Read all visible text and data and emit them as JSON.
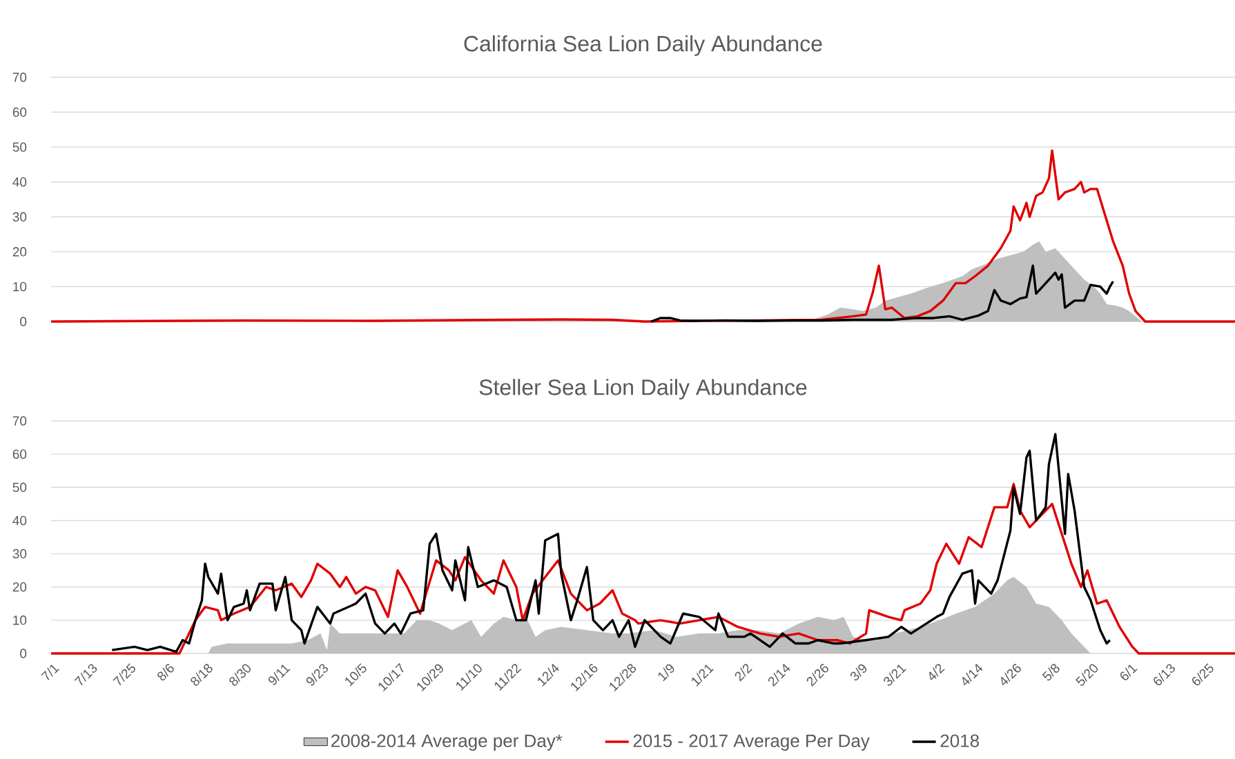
{
  "chart_data": [
    {
      "type": "line",
      "title": "California Sea Lion Daily Abundance",
      "xlim": [
        "2015-07-01",
        "2016-07-04"
      ],
      "ylim": [
        0,
        70
      ],
      "yticks": [
        0,
        10,
        20,
        30,
        40,
        50,
        60,
        70
      ],
      "grid": "y",
      "tick_labels": "y",
      "series": [
        {
          "type": "area",
          "color": "#bfbfbf",
          "x": [
            "2015-07-01",
            "2016-01-17",
            "2016-02-16",
            "2016-02-23",
            "2016-02-28",
            "2016-03-03",
            "2016-03-07",
            "2016-03-10",
            "2016-03-14",
            "2016-03-17",
            "2016-03-21",
            "2016-03-25",
            "2016-03-31",
            "2016-04-04",
            "2016-04-07",
            "2016-04-10",
            "2016-04-13",
            "2016-04-16",
            "2016-04-21",
            "2016-04-25",
            "2016-04-29",
            "2016-05-02",
            "2016-05-04",
            "2016-05-06",
            "2016-05-09",
            "2016-05-11",
            "2016-05-13",
            "2016-05-15",
            "2016-05-18",
            "2016-05-21",
            "2016-05-23",
            "2016-05-25",
            "2016-05-28",
            "2016-05-30",
            "2016-06-01",
            "2016-06-03",
            "2016-06-05",
            "2016-07-04"
          ],
          "values": [
            0,
            0.2,
            0.3,
            0.5,
            2,
            4,
            3.5,
            3,
            4,
            6,
            7,
            8,
            10,
            11,
            12,
            13,
            15,
            16,
            18,
            19,
            20,
            22,
            23,
            20,
            21,
            19,
            17,
            15,
            12,
            10,
            8,
            5,
            4.5,
            4,
            3,
            1.5,
            0,
            0
          ]
        },
        {
          "color": "#e00000",
          "x": [
            "2015-07-01",
            "2015-08-30",
            "2015-10-09",
            "2015-11-18",
            "2015-12-08",
            "2015-12-23",
            "2016-01-02",
            "2016-01-17",
            "2016-02-06",
            "2016-02-26",
            "2016-03-02",
            "2016-03-07",
            "2016-03-11",
            "2016-03-13",
            "2016-03-15",
            "2016-03-17",
            "2016-03-19",
            "2016-03-23",
            "2016-03-27",
            "2016-03-31",
            "2016-04-04",
            "2016-04-08",
            "2016-04-11",
            "2016-04-14",
            "2016-04-18",
            "2016-04-22",
            "2016-04-25",
            "2016-04-26",
            "2016-04-28",
            "2016-04-30",
            "2016-05-01",
            "2016-05-03",
            "2016-05-05",
            "2016-05-07",
            "2016-05-08",
            "2016-05-10",
            "2016-05-12",
            "2016-05-15",
            "2016-05-17",
            "2016-05-18",
            "2016-05-20",
            "2016-05-22",
            "2016-05-24",
            "2016-05-27",
            "2016-05-30",
            "2016-06-01",
            "2016-06-03",
            "2016-06-06",
            "2016-07-04"
          ],
          "values": [
            0,
            0.3,
            0.2,
            0.5,
            0.6,
            0.5,
            0,
            0.2,
            0.3,
            0.5,
            1,
            1.5,
            2,
            8,
            16,
            3.5,
            4,
            1,
            1.5,
            3,
            6,
            11,
            11,
            13,
            16,
            21,
            26,
            33,
            29,
            34,
            30,
            36,
            37,
            41,
            49,
            35,
            37,
            38,
            40,
            37,
            38,
            38,
            32,
            23,
            16,
            8,
            3,
            0,
            0
          ]
        },
        {
          "color": "#000000",
          "x": [
            "2016-01-04",
            "2016-01-07",
            "2016-01-10",
            "2016-01-13",
            "2016-01-17",
            "2016-01-27",
            "2016-02-06",
            "2016-02-16",
            "2016-02-26",
            "2016-03-07",
            "2016-03-19",
            "2016-03-26",
            "2016-04-01",
            "2016-04-06",
            "2016-04-10",
            "2016-04-15",
            "2016-04-18",
            "2016-04-20",
            "2016-04-22",
            "2016-04-25",
            "2016-04-28",
            "2016-04-30",
            "2016-05-02",
            "2016-05-03",
            "2016-05-07",
            "2016-05-09",
            "2016-05-10",
            "2016-05-11",
            "2016-05-12",
            "2016-05-15",
            "2016-05-18",
            "2016-05-20",
            "2016-05-23",
            "2016-05-25",
            "2016-05-26",
            "2016-05-27"
          ],
          "values": [
            0,
            1,
            1,
            0.3,
            0.2,
            0.3,
            0.2,
            0.3,
            0.3,
            0.5,
            0.5,
            1,
            1,
            1.5,
            0.5,
            1.7,
            3,
            9,
            6,
            5,
            6.6,
            7,
            16,
            8,
            12,
            14,
            12,
            13.5,
            4,
            6,
            6,
            10.5,
            10,
            8,
            10,
            11.5
          ]
        }
      ]
    },
    {
      "type": "line",
      "title": "Steller Sea Lion Daily Abundance",
      "xlim": [
        "2015-07-01",
        "2016-07-04"
      ],
      "ylim": [
        0,
        70
      ],
      "yticks": [
        0,
        10,
        20,
        30,
        40,
        50,
        60,
        70
      ],
      "grid": "y",
      "legend": "bottom",
      "xticks": [
        {
          "value": "2015-07-01",
          "label": "7/1"
        },
        {
          "value": "2015-07-13",
          "label": "7/13"
        },
        {
          "value": "2015-07-25",
          "label": "7/25"
        },
        {
          "value": "2015-08-06",
          "label": "8/6"
        },
        {
          "value": "2015-08-18",
          "label": "8/18"
        },
        {
          "value": "2015-08-30",
          "label": "8/30"
        },
        {
          "value": "2015-09-11",
          "label": "9/11"
        },
        {
          "value": "2015-09-23",
          "label": "9/23"
        },
        {
          "value": "2015-10-05",
          "label": "10/5"
        },
        {
          "value": "2015-10-17",
          "label": "10/17"
        },
        {
          "value": "2015-10-29",
          "label": "10/29"
        },
        {
          "value": "2015-11-10",
          "label": "11/10"
        },
        {
          "value": "2015-11-22",
          "label": "11/22"
        },
        {
          "value": "2015-12-04",
          "label": "12/4"
        },
        {
          "value": "2015-12-16",
          "label": "12/16"
        },
        {
          "value": "2015-12-28",
          "label": "12/28"
        },
        {
          "value": "2016-01-09",
          "label": "1/9"
        },
        {
          "value": "2016-01-21",
          "label": "1/21"
        },
        {
          "value": "2016-02-02",
          "label": "2/2"
        },
        {
          "value": "2016-02-14",
          "label": "2/14"
        },
        {
          "value": "2016-02-26",
          "label": "2/26"
        },
        {
          "value": "2016-03-09",
          "label": "3/9"
        },
        {
          "value": "2016-03-21",
          "label": "3/21"
        },
        {
          "value": "2016-04-02",
          "label": "4/2"
        },
        {
          "value": "2016-04-14",
          "label": "4/14"
        },
        {
          "value": "2016-04-26",
          "label": "4/26"
        },
        {
          "value": "2016-05-08",
          "label": "5/8"
        },
        {
          "value": "2016-05-20",
          "label": "5/20"
        },
        {
          "value": "2016-06-01",
          "label": "6/1"
        },
        {
          "value": "2016-06-13",
          "label": "6/13"
        },
        {
          "value": "2016-06-25",
          "label": "6/25"
        }
      ],
      "series": [
        {
          "type": "area",
          "name": "2008-2014 Average per Day*",
          "color": "#bfbfbf",
          "x": [
            "2015-07-01",
            "2015-08-19",
            "2015-08-20",
            "2015-08-25",
            "2015-09-04",
            "2015-09-14",
            "2015-09-19",
            "2015-09-23",
            "2015-09-25",
            "2015-09-26",
            "2015-09-29",
            "2015-10-09",
            "2015-10-19",
            "2015-10-23",
            "2015-10-27",
            "2015-10-30",
            "2015-11-03",
            "2015-11-09",
            "2015-11-12",
            "2015-11-16",
            "2015-11-19",
            "2015-11-23",
            "2015-11-26",
            "2015-11-29",
            "2015-12-02",
            "2015-12-07",
            "2015-12-15",
            "2015-12-23",
            "2015-12-28",
            "2016-01-05",
            "2016-01-12",
            "2016-01-19",
            "2016-01-25",
            "2016-01-31",
            "2016-02-06",
            "2016-02-13",
            "2016-02-19",
            "2016-02-25",
            "2016-03-01",
            "2016-03-04",
            "2016-03-07",
            "2016-03-11",
            "2016-03-14",
            "2016-03-20",
            "2016-03-28",
            "2016-04-03",
            "2016-04-08",
            "2016-04-14",
            "2016-04-20",
            "2016-04-24",
            "2016-04-26",
            "2016-04-30",
            "2016-05-03",
            "2016-05-07",
            "2016-05-11",
            "2016-05-14",
            "2016-05-18",
            "2016-05-20",
            "2016-07-04"
          ],
          "values": [
            0,
            0,
            2,
            3,
            3,
            3,
            4,
            6,
            1,
            9,
            6,
            6,
            6,
            10,
            10,
            9,
            7,
            10,
            5,
            9,
            11,
            10,
            11,
            5,
            7,
            8,
            7,
            6,
            6,
            7,
            5,
            6,
            6,
            7,
            7,
            6,
            9,
            11,
            10,
            11,
            5,
            4,
            4,
            6,
            8,
            10,
            12,
            14,
            18,
            22,
            23,
            20,
            15,
            14,
            10,
            6,
            2,
            0,
            0
          ]
        },
        {
          "name": "2015 - 2017 Average Per Day",
          "color": "#e00000",
          "x": [
            "2015-07-01",
            "2015-08-10",
            "2015-08-15",
            "2015-08-18",
            "2015-08-22",
            "2015-08-23",
            "2015-08-27",
            "2015-09-01",
            "2015-09-06",
            "2015-09-09",
            "2015-09-14",
            "2015-09-17",
            "2015-09-20",
            "2015-09-22",
            "2015-09-26",
            "2015-09-29",
            "2015-10-01",
            "2015-10-04",
            "2015-10-07",
            "2015-10-10",
            "2015-10-14",
            "2015-10-17",
            "2015-10-20",
            "2015-10-24",
            "2015-10-29",
            "2015-11-02",
            "2015-11-04",
            "2015-11-07",
            "2015-11-12",
            "2015-11-16",
            "2015-11-19",
            "2015-11-23",
            "2015-11-25",
            "2015-11-28",
            "2015-12-02",
            "2015-12-06",
            "2015-12-10",
            "2015-12-15",
            "2015-12-19",
            "2015-12-23",
            "2015-12-26",
            "2015-12-30",
            "2015-12-31",
            "2016-01-07",
            "2016-01-13",
            "2016-01-19",
            "2016-01-25",
            "2016-01-31",
            "2016-02-07",
            "2016-02-13",
            "2016-02-19",
            "2016-02-25",
            "2016-03-02",
            "2016-03-06",
            "2016-03-11",
            "2016-03-12",
            "2016-03-18",
            "2016-03-22",
            "2016-03-23",
            "2016-03-28",
            "2016-03-31",
            "2016-04-02",
            "2016-04-05",
            "2016-04-09",
            "2016-04-12",
            "2016-04-16",
            "2016-04-20",
            "2016-04-24",
            "2016-04-26",
            "2016-04-28",
            "2016-05-01",
            "2016-05-03",
            "2016-05-08",
            "2016-05-12",
            "2016-05-14",
            "2016-05-17",
            "2016-05-19",
            "2016-05-22",
            "2016-05-25",
            "2016-05-29",
            "2016-06-02",
            "2016-06-04",
            "2016-07-04"
          ],
          "values": [
            0,
            0,
            10,
            14,
            13,
            10,
            12,
            14,
            20,
            19,
            21,
            17,
            22,
            27,
            24,
            20,
            23,
            18,
            20,
            19,
            11,
            25,
            20,
            12,
            28,
            25,
            22,
            29,
            22,
            18,
            28,
            20,
            10,
            18,
            23,
            28,
            18,
            13,
            15,
            19,
            12,
            10,
            9,
            10,
            9,
            10,
            11,
            8,
            6,
            5,
            6,
            4,
            4,
            3,
            6,
            13,
            11,
            10,
            13,
            15,
            19,
            27,
            33,
            27,
            35,
            32,
            44,
            44,
            51,
            43,
            38,
            40,
            45,
            33,
            27,
            20,
            25,
            15,
            16,
            8,
            2,
            0,
            0
          ]
        },
        {
          "name": "2018",
          "color": "#000000",
          "x": [
            "2015-07-20",
            "2015-07-27",
            "2015-07-31",
            "2015-08-04",
            "2015-08-09",
            "2015-08-11",
            "2015-08-13",
            "2015-08-15",
            "2015-08-17",
            "2015-08-18",
            "2015-08-19",
            "2015-08-22",
            "2015-08-23",
            "2015-08-25",
            "2015-08-27",
            "2015-08-30",
            "2015-08-31",
            "2015-09-01",
            "2015-09-04",
            "2015-09-08",
            "2015-09-09",
            "2015-09-12",
            "2015-09-14",
            "2015-09-17",
            "2015-09-18",
            "2015-09-22",
            "2015-09-26",
            "2015-09-27",
            "2015-10-04",
            "2015-10-07",
            "2015-10-10",
            "2015-10-13",
            "2015-10-16",
            "2015-10-18",
            "2015-10-21",
            "2015-10-25",
            "2015-10-27",
            "2015-10-29",
            "2015-10-31",
            "2015-11-03",
            "2015-11-04",
            "2015-11-07",
            "2015-11-08",
            "2015-11-11",
            "2015-11-16",
            "2015-11-20",
            "2015-11-23",
            "2015-11-26",
            "2015-11-29",
            "2015-11-30",
            "2015-12-02",
            "2015-12-04",
            "2015-12-06",
            "2015-12-07",
            "2015-12-10",
            "2015-12-12",
            "2015-12-15",
            "2015-12-17",
            "2015-12-20",
            "2015-12-23",
            "2015-12-25",
            "2015-12-28",
            "2015-12-30",
            "2016-01-02",
            "2016-01-07",
            "2016-01-10",
            "2016-01-14",
            "2016-01-19",
            "2016-01-24",
            "2016-01-25",
            "2016-01-28",
            "2016-02-02",
            "2016-02-04",
            "2016-02-10",
            "2016-02-14",
            "2016-02-18",
            "2016-02-22",
            "2016-02-25",
            "2016-03-01",
            "2016-03-03",
            "2016-03-11",
            "2016-03-18",
            "2016-03-22",
            "2016-03-25",
            "2016-04-02",
            "2016-04-04",
            "2016-04-06",
            "2016-04-10",
            "2016-04-13",
            "2016-04-14",
            "2016-04-15",
            "2016-04-19",
            "2016-04-21",
            "2016-04-25",
            "2016-04-26",
            "2016-04-28",
            "2016-04-30",
            "2016-05-01",
            "2016-05-03",
            "2016-05-06",
            "2016-05-07",
            "2016-05-09",
            "2016-05-12",
            "2016-05-13",
            "2016-05-15",
            "2016-05-18",
            "2016-05-20",
            "2016-05-23",
            "2016-05-25",
            "2016-05-26"
          ],
          "values": [
            1,
            2,
            1,
            2,
            0.5,
            4,
            3,
            10,
            16,
            27,
            23,
            18,
            24,
            10,
            14,
            15,
            19,
            13,
            21,
            21,
            13,
            23,
            10,
            7,
            3,
            14,
            9,
            12,
            15,
            18,
            9,
            6,
            9,
            6,
            12,
            13,
            33,
            36,
            25,
            19,
            28,
            16,
            32,
            20,
            22,
            20,
            10,
            10,
            22,
            12,
            34,
            35,
            36,
            24,
            10,
            16,
            26,
            10,
            7,
            10,
            5,
            10,
            2,
            10,
            5,
            3,
            12,
            11,
            7,
            12,
            5,
            5,
            6,
            2,
            6,
            3,
            3,
            4,
            3,
            3,
            4,
            5,
            8,
            6,
            11,
            12,
            17,
            24,
            25,
            15,
            22,
            18,
            22,
            37,
            50,
            42,
            59,
            61,
            40,
            44,
            57,
            66,
            36,
            54,
            43,
            20,
            16,
            7,
            3,
            4
          ]
        }
      ]
    }
  ]
}
